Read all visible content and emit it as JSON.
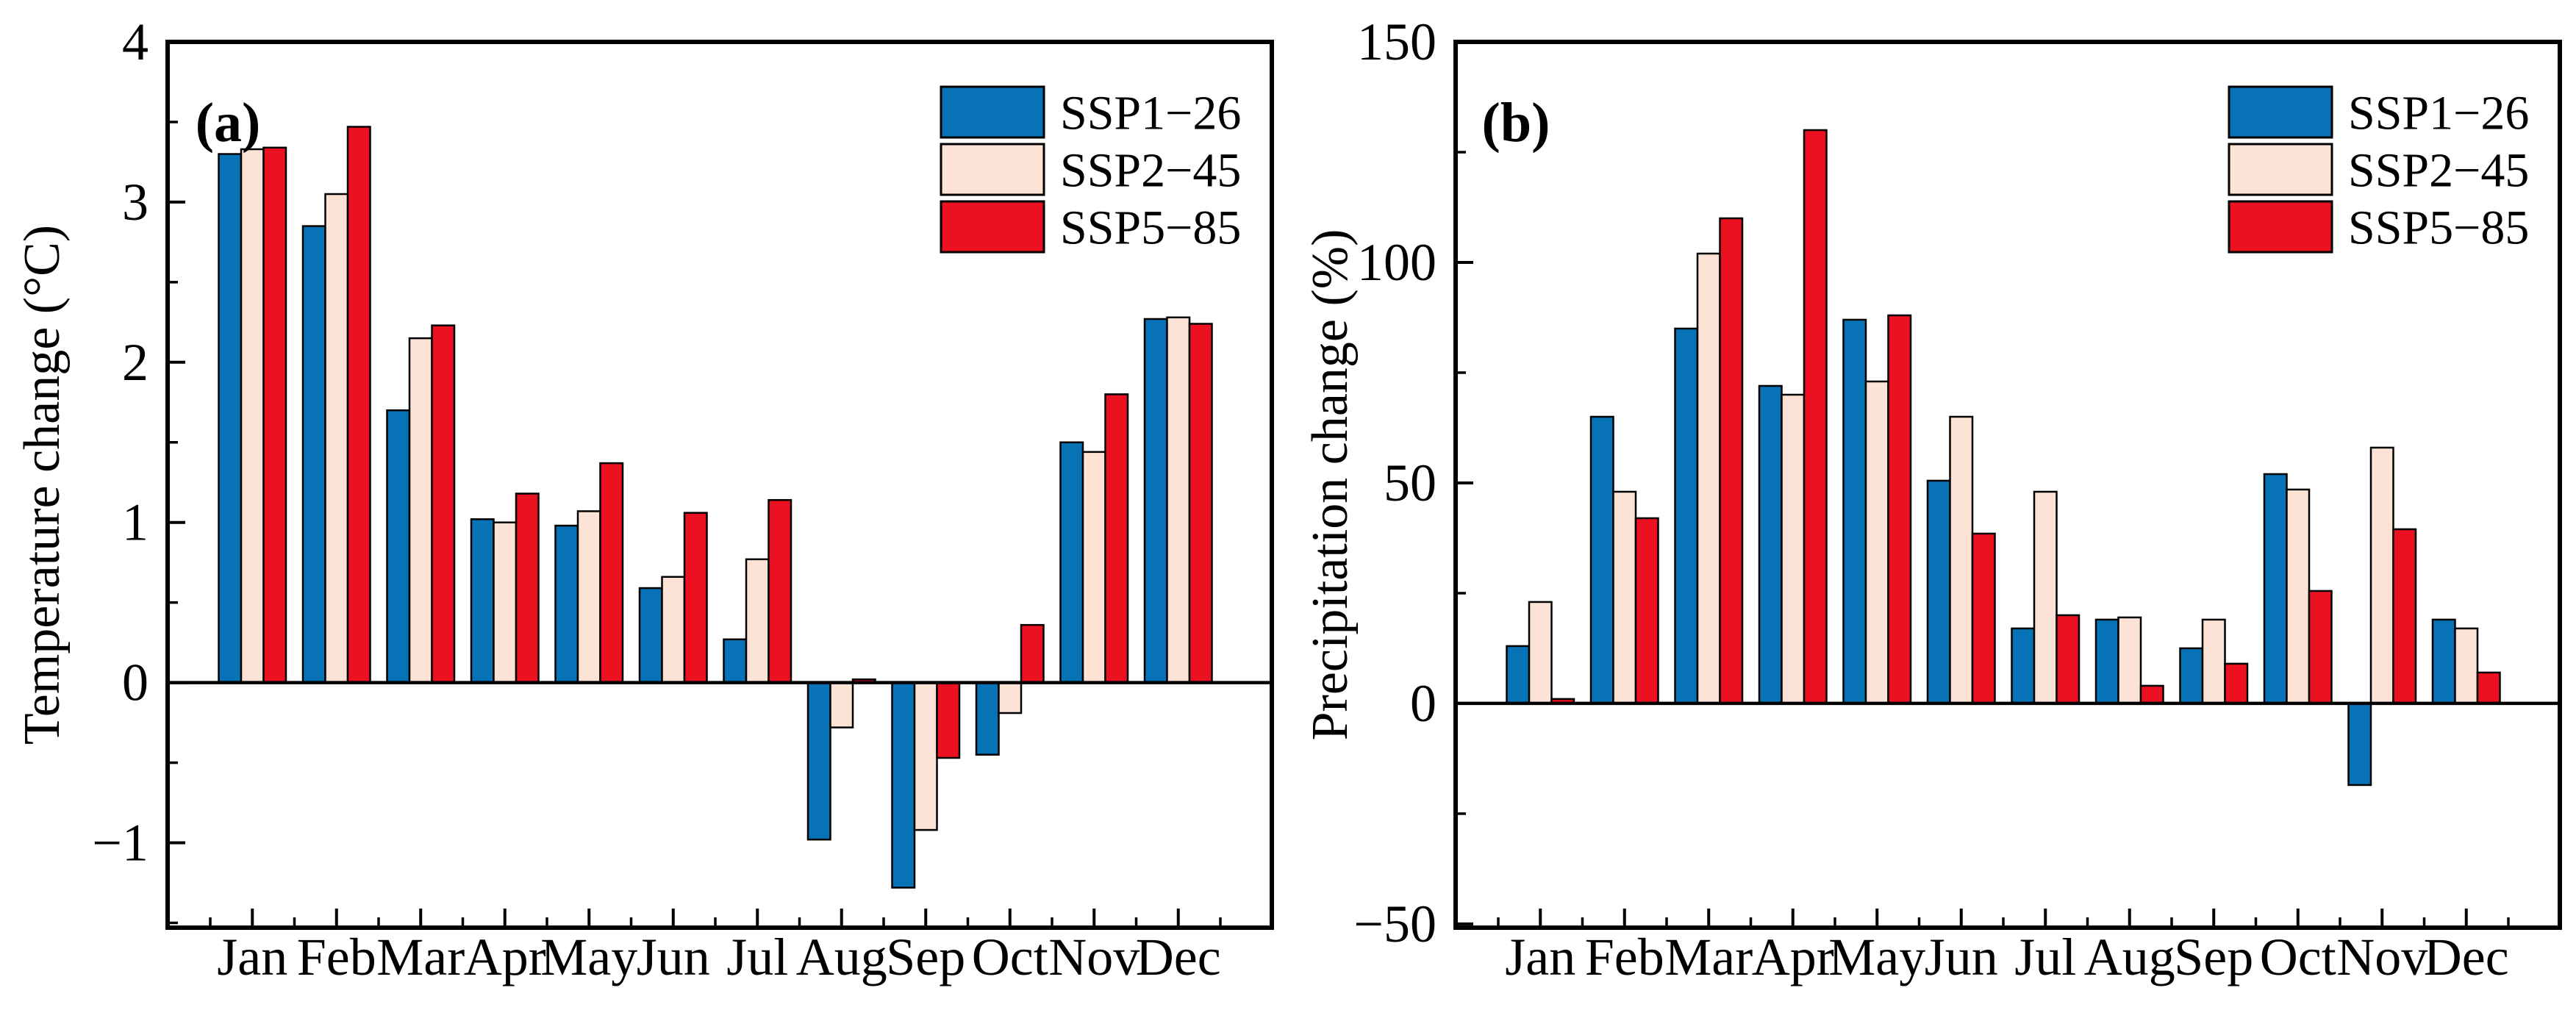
{
  "figure": {
    "background": "#ffffff",
    "axis_color": "#000000",
    "bar_border_color": "#000000"
  },
  "colors": {
    "series": [
      "#0773B6",
      "#FCE3D5",
      "#EB1120"
    ]
  },
  "legend": {
    "items": [
      {
        "label": "SSP1−26",
        "color": "#0773B6"
      },
      {
        "label": "SSP2−45",
        "color": "#FCE3D5"
      },
      {
        "label": "SSP5−85",
        "color": "#EB1120"
      }
    ],
    "position": "top-right"
  },
  "chart_data": [
    {
      "type": "bar",
      "panel_label": "(a)",
      "ylabel": "Temperature change (°C)",
      "xlabel": "",
      "categories": [
        "Jan",
        "Feb",
        "Mar",
        "Apr",
        "May",
        "Jun",
        "Jul",
        "Aug",
        "Sep",
        "Oct",
        "Nov",
        "Dec"
      ],
      "series": [
        {
          "name": "SSP1−26",
          "values": [
            3.3,
            2.85,
            1.7,
            1.02,
            0.98,
            0.59,
            0.27,
            -0.98,
            -1.28,
            -0.45,
            1.5,
            2.27
          ]
        },
        {
          "name": "SSP2−45",
          "values": [
            3.33,
            3.05,
            2.15,
            1.0,
            1.07,
            0.66,
            0.77,
            -0.28,
            -0.92,
            -0.19,
            1.44,
            2.28
          ]
        },
        {
          "name": "SSP5−85",
          "values": [
            3.34,
            3.47,
            2.23,
            1.18,
            1.37,
            1.06,
            1.14,
            0.02,
            -0.47,
            0.36,
            1.8,
            2.24
          ]
        }
      ],
      "ylim": [
        -1.53,
        4
      ],
      "yticks": [
        -1,
        0,
        1,
        2,
        3,
        4
      ],
      "ytick_minor_step": 0.5,
      "grid": false,
      "legend_position": "top-right"
    },
    {
      "type": "bar",
      "panel_label": "(b)",
      "ylabel": "Precipitation change (%)",
      "xlabel": "",
      "categories": [
        "Jan",
        "Feb",
        "Mar",
        "Apr",
        "May",
        "Jun",
        "Jul",
        "Aug",
        "Sep",
        "Oct",
        "Nov",
        "Dec"
      ],
      "series": [
        {
          "name": "SSP1−26",
          "values": [
            13,
            65,
            85,
            72,
            87,
            50.5,
            17,
            19,
            12.5,
            52,
            -18.5,
            19
          ]
        },
        {
          "name": "SSP2−45",
          "values": [
            23,
            48,
            102,
            70,
            73,
            65,
            48,
            19.5,
            19,
            48.5,
            58,
            17
          ]
        },
        {
          "name": "SSP5−85",
          "values": [
            1,
            42,
            110,
            130,
            88,
            38.5,
            20,
            4,
            9,
            25.5,
            39.5,
            7
          ]
        }
      ],
      "ylim": [
        -50.85,
        150
      ],
      "yticks": [
        -50,
        0,
        50,
        100,
        150
      ],
      "ytick_minor_step": 25,
      "grid": false,
      "legend_position": "top-right"
    }
  ]
}
